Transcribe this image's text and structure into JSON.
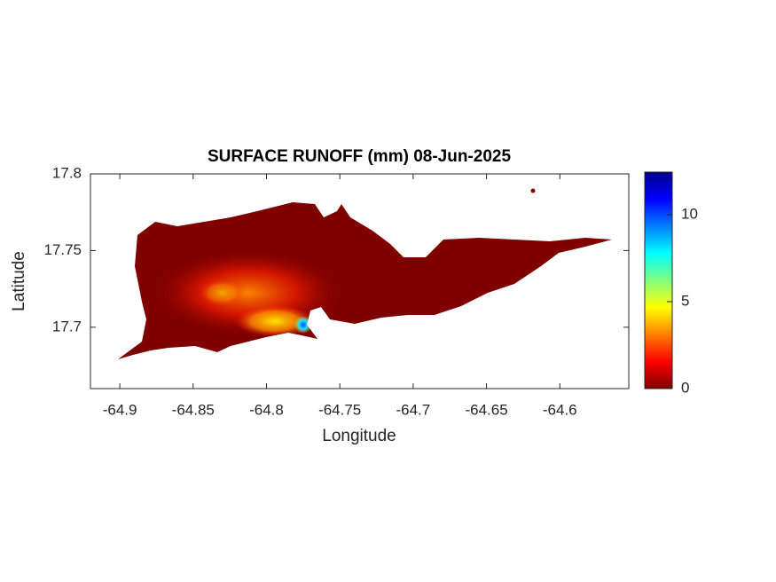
{
  "chart_data": {
    "type": "map",
    "title": "SURFACE RUNOFF (mm) 08-Jun-2025",
    "x_label": "Longitude",
    "y_label": "Latitude",
    "xlim": [
      -64.92,
      -64.553
    ],
    "ylim": [
      17.66,
      17.8
    ],
    "xticks": [
      -64.9,
      -64.85,
      -64.8,
      -64.75,
      -64.7,
      -64.65,
      -64.6
    ],
    "yticks": [
      17.7,
      17.75,
      17.8
    ],
    "colorbar": {
      "colormap": "jet",
      "clim": [
        0,
        12.45
      ],
      "ticks": [
        0,
        5,
        10
      ]
    }
  }
}
